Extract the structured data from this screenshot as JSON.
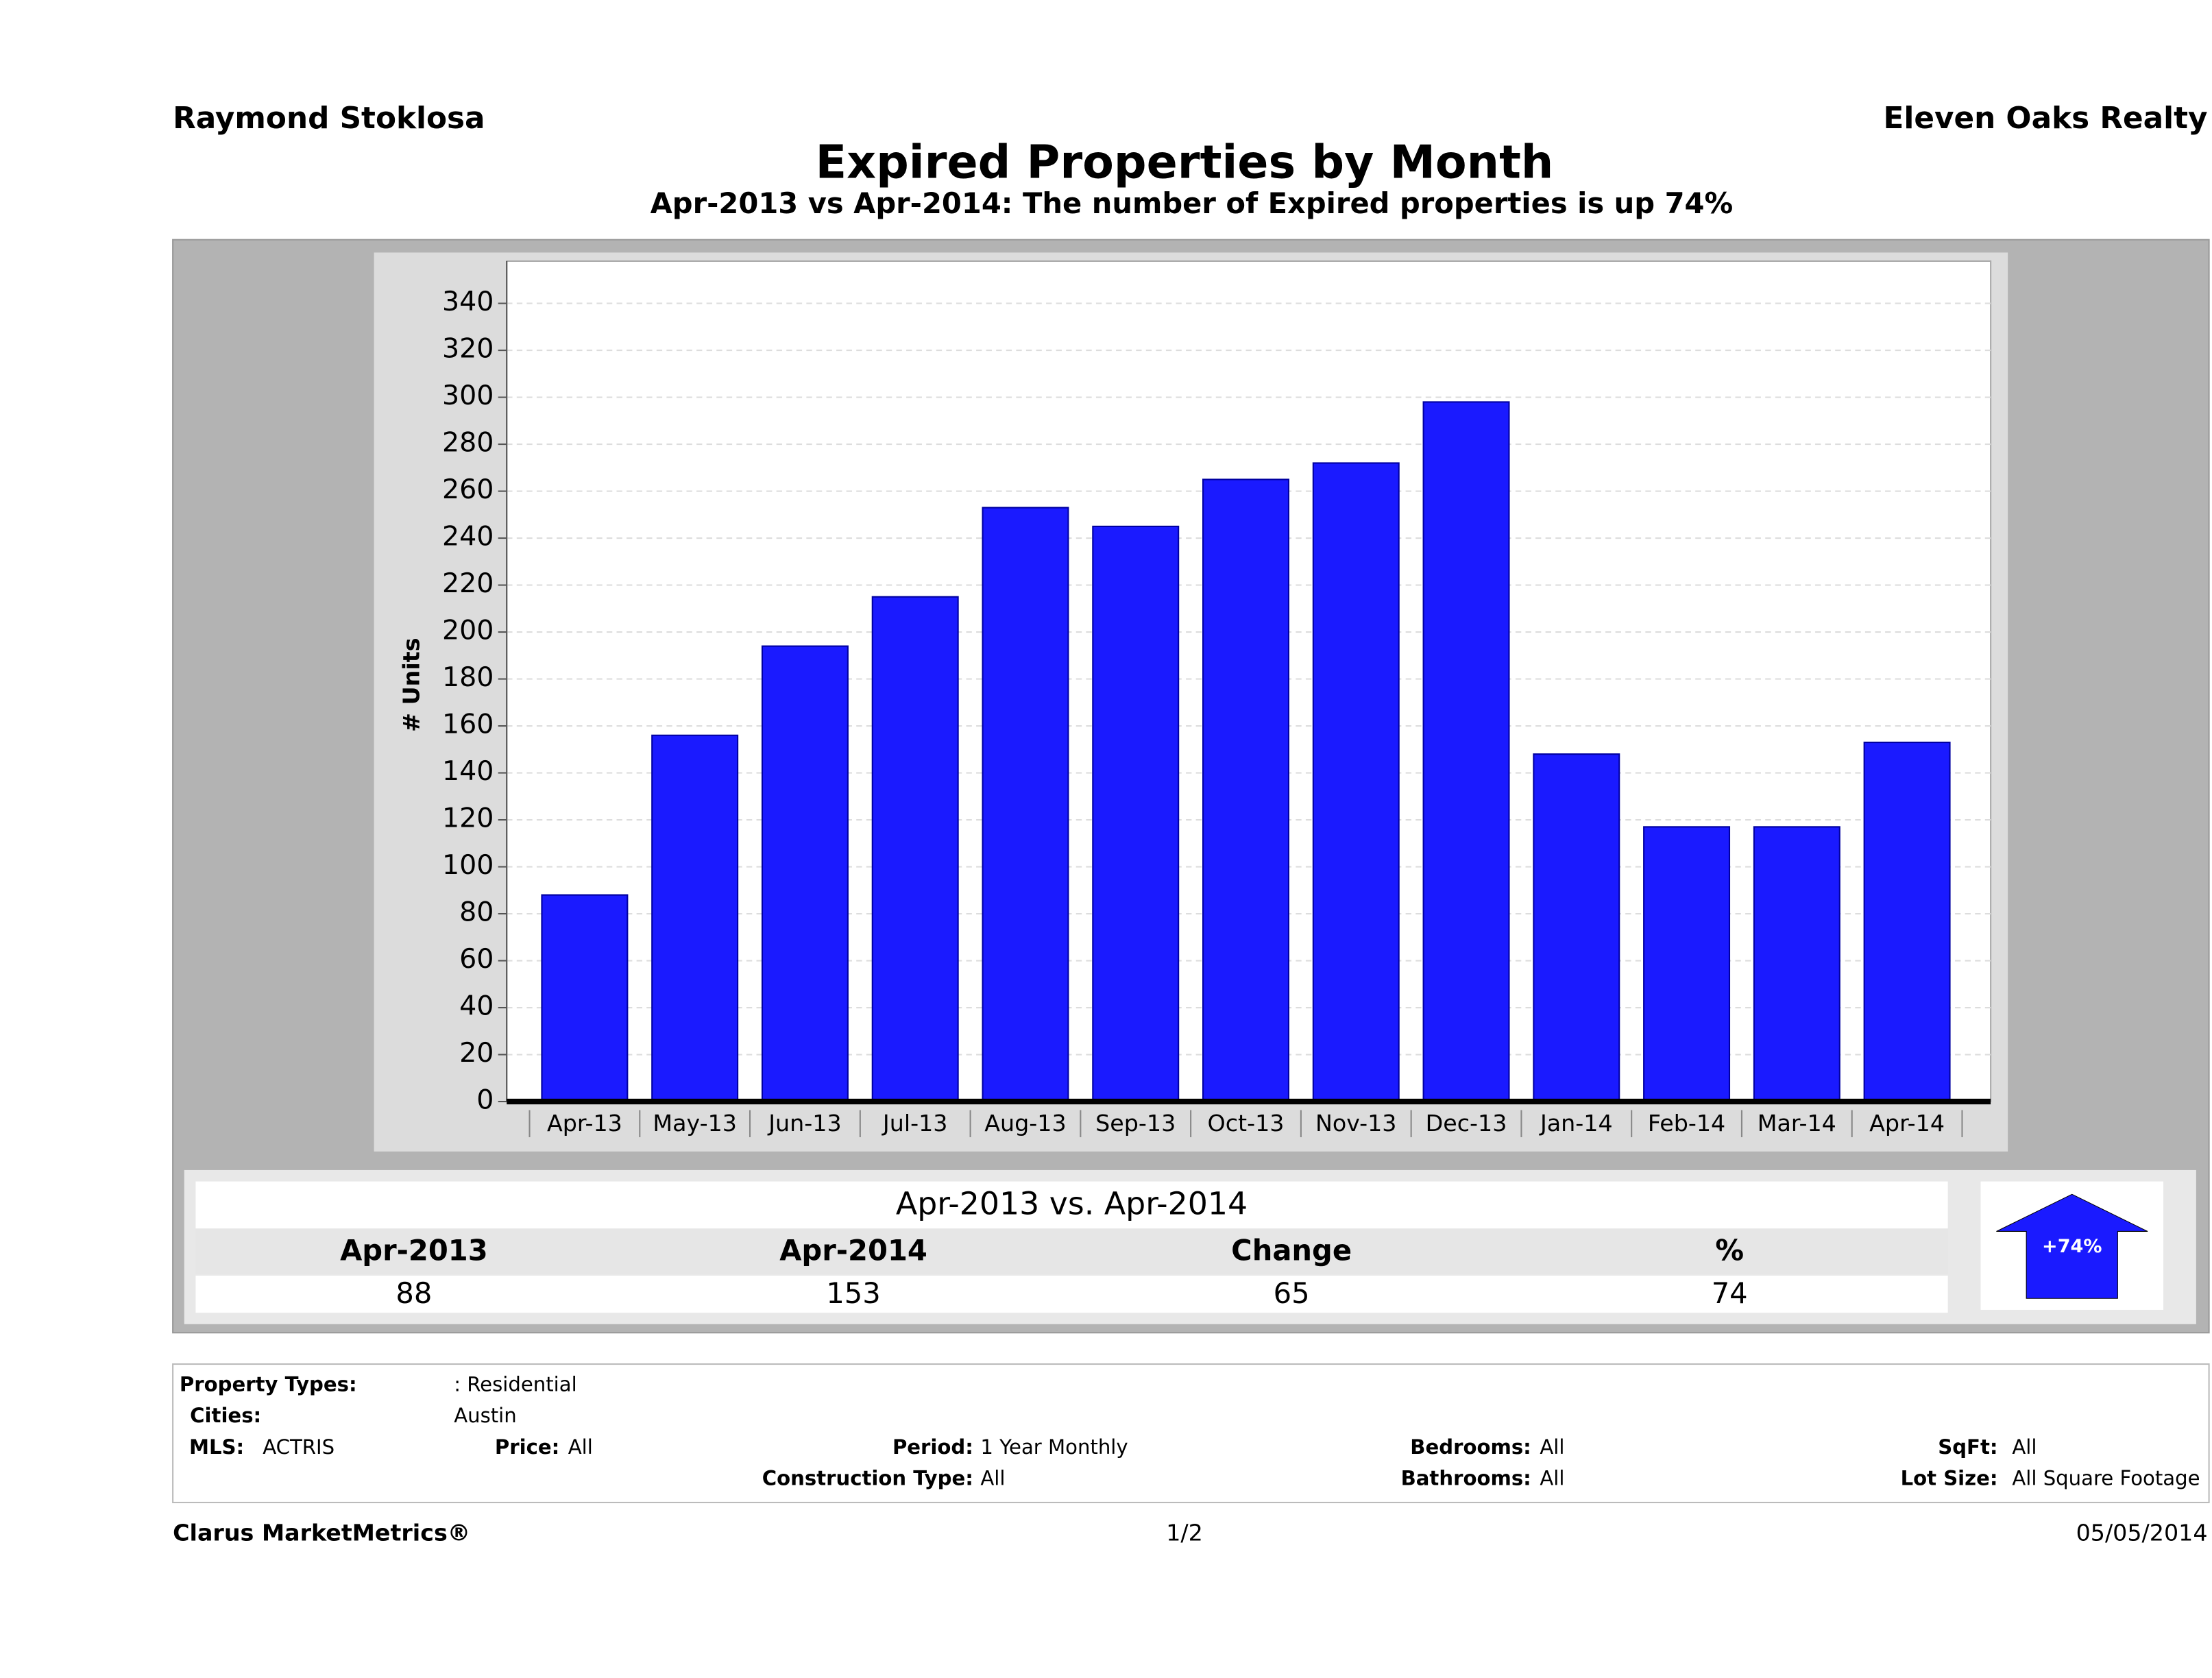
{
  "header": {
    "agent": "Raymond Stoklosa",
    "company": "Eleven Oaks Realty"
  },
  "chart_data": {
    "type": "bar",
    "title": "Expired Properties by Month",
    "subtitle": "Apr-2013 vs Apr-2014: The number of Expired  properties is up 74%",
    "y_label": "# Units",
    "categories": [
      "Apr-13",
      "May-13",
      "Jun-13",
      "Jul-13",
      "Aug-13",
      "Sep-13",
      "Oct-13",
      "Nov-13",
      "Dec-13",
      "Jan-14",
      "Feb-14",
      "Mar-14",
      "Apr-14"
    ],
    "values": [
      88,
      156,
      194,
      215,
      253,
      245,
      265,
      272,
      298,
      148,
      117,
      117,
      153
    ],
    "color": "#1a1aff",
    "ylim": [
      0,
      358
    ],
    "yticks": [
      0,
      20,
      40,
      60,
      80,
      100,
      120,
      140,
      160,
      180,
      200,
      220,
      240,
      260,
      280,
      300,
      320,
      340
    ],
    "grid": true
  },
  "summary": {
    "title": "Apr-2013 vs. Apr-2014",
    "headers": [
      "Apr-2013",
      "Apr-2014",
      "Change",
      "%"
    ],
    "values": [
      88,
      153,
      65,
      74
    ],
    "badge": "+74%"
  },
  "filters": [
    {
      "label": "Property Types:",
      "value": ": Residential"
    },
    {
      "label": "Cities:",
      "value": "Austin"
    },
    {
      "label": "MLS:",
      "value": "ACTRIS"
    },
    {
      "label": "Price:",
      "value": "All"
    },
    {
      "label": "Period:",
      "value": "1 Year Monthly"
    },
    {
      "label": "Bedrooms:",
      "value": "All"
    },
    {
      "label": "SqFt:",
      "value": "All"
    },
    {
      "label": "Construction Type:",
      "value": "All"
    },
    {
      "label": "Bathrooms:",
      "value": "All"
    },
    {
      "label": "Lot Size:",
      "value": "All Square Footage"
    }
  ],
  "footer": {
    "brand": "Clarus MarketMetrics®",
    "page": "1/2",
    "date": "05/05/2014"
  }
}
